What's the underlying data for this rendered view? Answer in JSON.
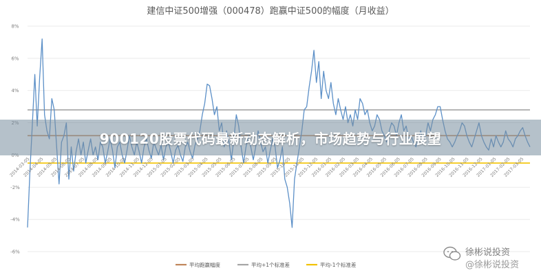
{
  "chart_data": {
    "type": "line",
    "title": "建信中证500增强（000478）跑赢中证500的幅度（月收益）",
    "ylim": [
      -6,
      8
    ],
    "yticks": [
      "8%",
      "6%",
      "4%",
      "2%",
      "0%",
      "-2%",
      "-4%",
      "-6%"
    ],
    "ytick_values": [
      8,
      6,
      4,
      2,
      0,
      -2,
      -4,
      -6
    ],
    "x_labels": [
      "2014-03-05",
      "2014-04-05",
      "2014-05-05",
      "2014-06-05",
      "2014-07-05",
      "2014-08-05",
      "2014-09-05",
      "2014-10-05",
      "2014-11-05",
      "2014-12-05",
      "2015-01-05",
      "2015-02-05",
      "2015-03-05",
      "2015-04-05",
      "2015-05-05",
      "2015-06-05",
      "2015-07-05",
      "2015-08-05",
      "2015-09-05",
      "2015-10-05",
      "2015-11-05",
      "2015-12-05",
      "2016-01-05",
      "2016-02-05",
      "2016-03-05",
      "2016-04-05",
      "2016-05-05",
      "2016-06-05",
      "2016-07-05",
      "2016-08-05",
      "2016-09-05",
      "2016-10-05",
      "2016-11-05",
      "2016-12-05",
      "2017-01-05",
      "2017-02-05",
      "2017-03-05"
    ],
    "grid": "horizontal",
    "legend_position": "bottom",
    "series": [
      {
        "name": "平均跑赢幅度",
        "color": "#c0855a",
        "values": [
          1.2
        ]
      },
      {
        "name": "平均+1个标准差",
        "color": "#a5a5a5",
        "values": [
          2.8
        ]
      },
      {
        "name": "平均-1个标准差",
        "color": "#f2c200",
        "values": [
          -0.5
        ]
      }
    ],
    "excess_series": {
      "color": "#5b8fc7",
      "x_start": 0,
      "x_end": 36.6,
      "values": [
        -4.5,
        -1,
        2,
        5,
        1.8,
        4.8,
        7.2,
        2.5,
        1.5,
        1,
        3.5,
        2.8,
        0.5,
        -1.8,
        0.8,
        1.2,
        2,
        -1.5,
        0.5,
        -1,
        0.2,
        1,
        0,
        0.8,
        -0.5,
        0.3,
        1,
        0,
        0.5,
        -0.3,
        0.8,
        0.5,
        -0.5,
        0.2,
        1,
        0.3,
        -0.8,
        0.5,
        0.8,
        0,
        -0.5,
        0.3,
        1.2,
        0.5,
        0,
        0.8,
        0.2,
        -0.5,
        0.5,
        1,
        0.3,
        -0.2,
        0.8,
        0.4,
        0,
        0.6,
        -0.3,
        0.5,
        0.8,
        0.2,
        -0.5,
        0.3,
        0.6,
        0,
        -0.4,
        0.5,
        0.8,
        0.2,
        -0.2,
        0.6,
        1,
        1.5,
        2.5,
        3.2,
        4.4,
        4.3,
        3.5,
        2.5,
        3,
        1.5,
        2,
        0.5,
        1.5,
        0.8,
        -0.3,
        1,
        2.5,
        1.8,
        0.5,
        -0.5,
        0.5,
        1.2,
        0.5,
        -0.3,
        0.5,
        1.5,
        0.8,
        0.2,
        0.5,
        -0.5,
        0.3,
        1,
        0.5,
        -0.8,
        -0.3,
        0.5,
        -1.5,
        -2,
        -3,
        -4.5,
        -1.5,
        -0.5,
        0.5,
        1.5,
        2.8,
        3,
        4.2,
        5.2,
        6.5,
        4.5,
        5.8,
        3.5,
        5.2,
        4,
        3.5,
        4.5,
        3.2,
        2.5,
        3.5,
        2.8,
        2.2,
        3,
        2,
        2.5,
        1.8,
        2.8,
        2.2,
        3.5,
        3.2,
        2.5,
        2.8,
        2,
        1.5,
        1.8,
        2.5,
        2.2,
        1.5,
        1.2,
        0.8,
        1.5,
        2,
        1.8,
        1.2,
        2,
        2.5,
        1.5,
        1.8,
        1,
        1.2,
        0.8,
        0.5,
        1,
        1.5,
        0.8,
        1.2,
        2,
        1.5,
        2.2,
        2.5,
        3,
        3,
        2.2,
        1.5,
        1,
        0.8,
        0.5,
        0.8,
        1.2,
        1.5,
        2,
        1.8,
        1.2,
        0.8,
        0.5,
        1,
        1.5,
        2,
        1.2,
        0.8,
        0.5,
        0.3,
        1,
        0.5,
        1.2,
        0.8,
        0.5,
        0.8,
        1.5,
        1,
        0.8,
        0.5,
        1,
        1.2,
        1.5,
        1.7,
        1.2,
        0.8,
        0.5
      ]
    }
  },
  "overlay_headline": "900120股票代码最新动态解析，市场趋势与行业展望",
  "watermark": {
    "line1": "徐彬说投资",
    "line2": "@徐彬说投资"
  }
}
